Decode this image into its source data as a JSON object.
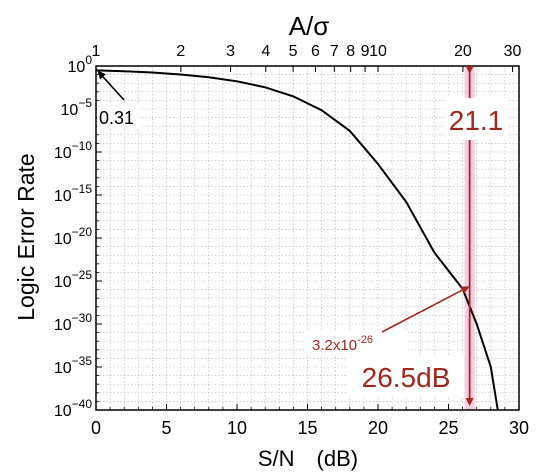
{
  "chart_data": {
    "type": "line",
    "title": "",
    "xlabel": "S/N　(dB)",
    "ylabel": "Logic Error Rate",
    "x2label": "A/σ",
    "xlim": [
      0,
      30
    ],
    "ylim_log10": [
      -40,
      0
    ],
    "log_y": true,
    "grid": true,
    "x_ticks": [
      0,
      5,
      10,
      15,
      20,
      25,
      30
    ],
    "y_ticks": [
      {
        "exp": 0,
        "label": "10",
        "sup": "0"
      },
      {
        "exp": -5,
        "label": "10",
        "sup": "−5"
      },
      {
        "exp": -10,
        "label": "10",
        "sup": "−10"
      },
      {
        "exp": -15,
        "label": "10",
        "sup": "−15"
      },
      {
        "exp": -20,
        "label": "10",
        "sup": "−20"
      },
      {
        "exp": -25,
        "label": "10",
        "sup": "−25"
      },
      {
        "exp": -30,
        "label": "10",
        "sup": "−30"
      },
      {
        "exp": -35,
        "label": "10",
        "sup": "−35"
      },
      {
        "exp": -40,
        "label": "10",
        "sup": "−40"
      }
    ],
    "top_ticks": [
      {
        "a": 1,
        "label": "1"
      },
      {
        "a": 2,
        "label": "2"
      },
      {
        "a": 3,
        "label": "3"
      },
      {
        "a": 4,
        "label": "4"
      },
      {
        "a": 5,
        "label": "5"
      },
      {
        "a": 6,
        "label": "6"
      },
      {
        "a": 7,
        "label": "7"
      },
      {
        "a": 8,
        "label": "8"
      },
      {
        "a": 9,
        "label": "9"
      },
      {
        "a": 10,
        "label": "10"
      },
      {
        "a": 20,
        "label": "20"
      },
      {
        "a": 30,
        "label": "30"
      }
    ],
    "series": [
      {
        "x": [
          0,
          2,
          4,
          6,
          8,
          10,
          12,
          14,
          16,
          18,
          20,
          22,
          24,
          26,
          27,
          28,
          28.5
        ],
        "log10_y": [
          -0.51,
          -0.62,
          -0.76,
          -0.99,
          -1.31,
          -1.78,
          -2.48,
          -3.53,
          -5.14,
          -7.55,
          -11.4,
          -15.8,
          -21.7,
          -25.9,
          -30.0,
          -35.0,
          -40.0
        ]
      }
    ],
    "annotations": {
      "threshold_x": 26.5,
      "point_log10_y": -25.5,
      "point_label_base": "3.2x10",
      "point_label_sup": "-26",
      "db_label": "26.5dB",
      "ratio_label": "21.1",
      "start_label": "0.31"
    },
    "colors": {
      "curve": "#000000",
      "annotation": "#a0281e",
      "highlight": "#f7cde4",
      "grid": "#b3b3b3"
    }
  }
}
